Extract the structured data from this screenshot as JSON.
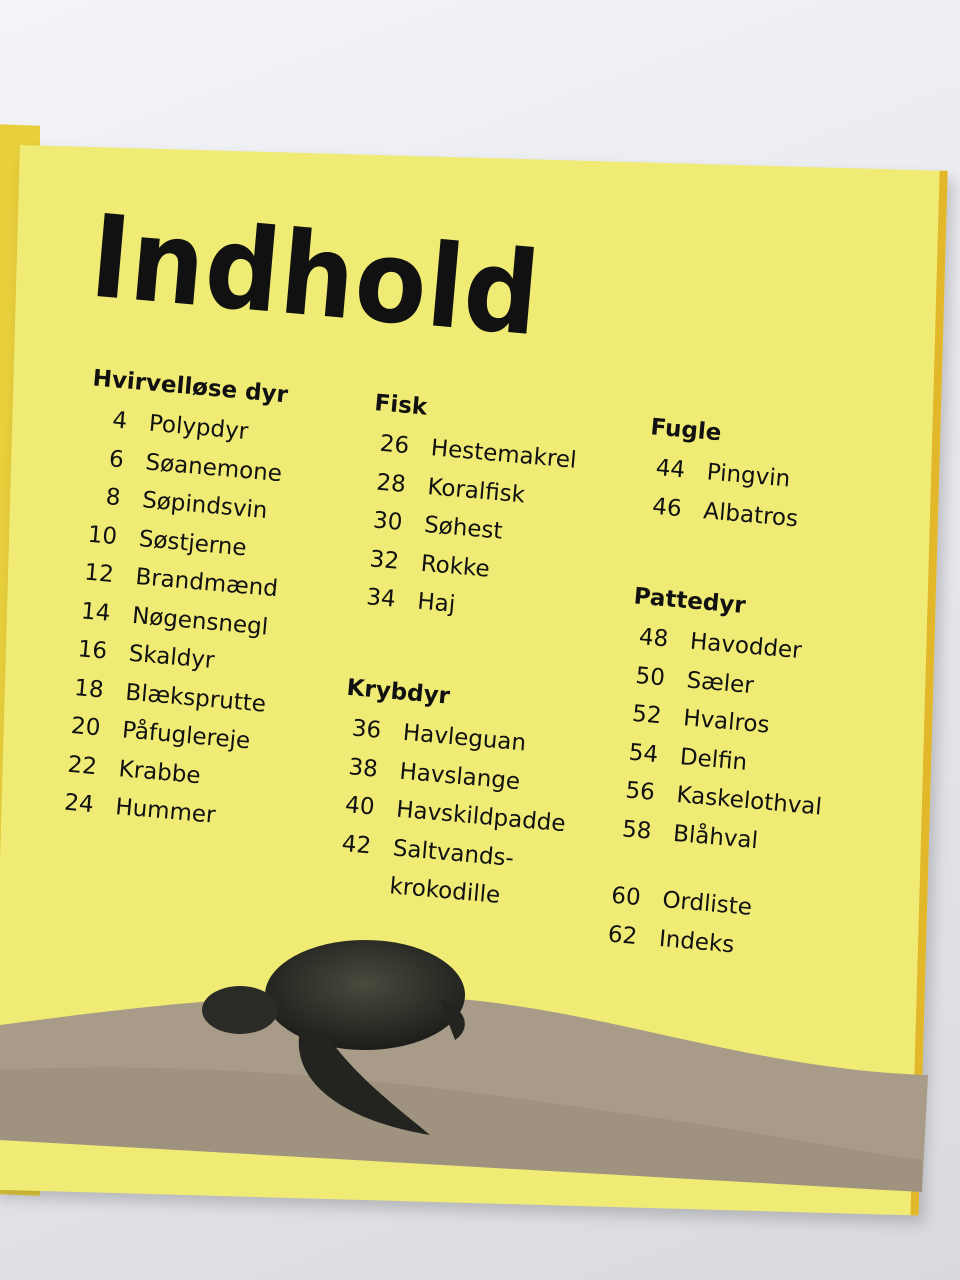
{
  "title": "Indhold",
  "sections": [
    {
      "heading": "Hvirvelløse dyr",
      "entries": [
        {
          "page": "4",
          "name": "Polypdyr"
        },
        {
          "page": "6",
          "name": "Søanemone"
        },
        {
          "page": "8",
          "name": "Søpindsvin"
        },
        {
          "page": "10",
          "name": "Søstjerne"
        },
        {
          "page": "12",
          "name": "Brandmænd"
        },
        {
          "page": "14",
          "name": "Nøgensnegl"
        },
        {
          "page": "16",
          "name": "Skaldyr"
        },
        {
          "page": "18",
          "name": "Blæksprutte"
        },
        {
          "page": "20",
          "name": "Påfuglereje"
        },
        {
          "page": "22",
          "name": "Krabbe"
        },
        {
          "page": "24",
          "name": "Hummer"
        }
      ]
    },
    {
      "heading": "Fisk",
      "entries": [
        {
          "page": "26",
          "name": "Hestemakrel"
        },
        {
          "page": "28",
          "name": "Koralfisk"
        },
        {
          "page": "30",
          "name": "Søhest"
        },
        {
          "page": "32",
          "name": "Rokke"
        },
        {
          "page": "34",
          "name": "Haj"
        }
      ]
    },
    {
      "heading": "Krybdyr",
      "entries": [
        {
          "page": "36",
          "name": "Havleguan"
        },
        {
          "page": "38",
          "name": "Havslange"
        },
        {
          "page": "40",
          "name": "Havskildpadde"
        },
        {
          "page": "42",
          "name": "Saltvands-",
          "continuation": "krokodille"
        }
      ]
    },
    {
      "heading": "Fugle",
      "entries": [
        {
          "page": "44",
          "name": "Pingvin"
        },
        {
          "page": "46",
          "name": "Albatros"
        }
      ]
    },
    {
      "heading": "Pattedyr",
      "entries": [
        {
          "page": "48",
          "name": "Havodder"
        },
        {
          "page": "50",
          "name": "Sæler"
        },
        {
          "page": "52",
          "name": "Hvalros"
        },
        {
          "page": "54",
          "name": "Delfin"
        },
        {
          "page": "56",
          "name": "Kaskelothval"
        },
        {
          "page": "58",
          "name": "Blåhval"
        }
      ]
    }
  ],
  "extras": [
    {
      "page": "60",
      "name": "Ordliste"
    },
    {
      "page": "62",
      "name": "Indeks"
    }
  ],
  "colors": {
    "page": "#f0eb74",
    "text": "#111111",
    "sand": "#a89c88"
  }
}
